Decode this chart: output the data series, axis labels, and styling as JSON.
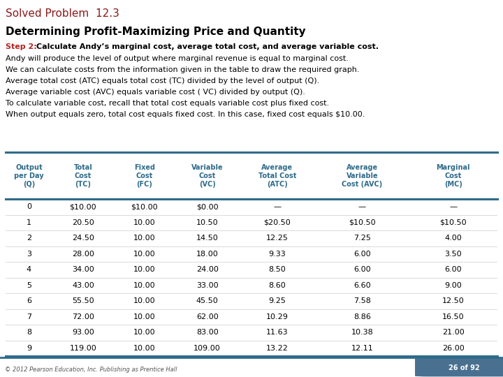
{
  "title1_normal": "Solved Problem  ",
  "title1_bold": "12.3",
  "title2": "Determining Profit-Maximizing Price and Quantity",
  "step_label": "Step 2:  ",
  "step_text": "Calculate Andy’s marginal cost, average total cost, and average variable cost.",
  "body_lines": [
    "Andy will produce the level of output where marginal revenue is equal to marginal cost.",
    "We can calculate costs from the information given in the table to draw the required graph.",
    "Average total cost (ATC) equals total cost (TC) divided by the level of output (Q).",
    "Average variable cost (AVC) equals variable cost ( VC) divided by output (Q).",
    "To calculate variable cost, recall that total cost equals variable cost plus fixed cost.",
    "When output equals zero, total cost equals fixed cost. In this case, fixed cost equals $10.00."
  ],
  "col_headers": [
    "Output\nper Day\n(Q)",
    "Total\nCost\n(TC)",
    "Fixed\nCost\n(FC)",
    "Variable\nCost\n(VC)",
    "Average\nTotal Cost\n(ATC)",
    "Average\nVariable\nCost (AVC)",
    "Marginal\nCost\n(MC)"
  ],
  "table_data": [
    [
      "0",
      "$10.00",
      "$10.00",
      "$0.00",
      "—",
      "—",
      "—"
    ],
    [
      "1",
      "20.50",
      "10.00",
      "10.50",
      "$20.50",
      "$10.50",
      "$10.50"
    ],
    [
      "2",
      "24.50",
      "10.00",
      "14.50",
      "12.25",
      "7.25",
      "4.00"
    ],
    [
      "3",
      "28.00",
      "10.00",
      "18.00",
      "9.33",
      "6.00",
      "3.50"
    ],
    [
      "4",
      "34.00",
      "10.00",
      "24.00",
      "8.50",
      "6.00",
      "6.00"
    ],
    [
      "5",
      "43.00",
      "10.00",
      "33.00",
      "8.60",
      "6.60",
      "9.00"
    ],
    [
      "6",
      "55.50",
      "10.00",
      "45.50",
      "9.25",
      "7.58",
      "12.50"
    ],
    [
      "7",
      "72.00",
      "10.00",
      "62.00",
      "10.29",
      "8.86",
      "16.50"
    ],
    [
      "8",
      "93.00",
      "10.00",
      "83.00",
      "11.63",
      "10.38",
      "21.00"
    ],
    [
      "9",
      "119.00",
      "10.00",
      "109.00",
      "13.22",
      "12.11",
      "26.00"
    ]
  ],
  "dark_red": "#8B1A1A",
  "teal": "#2E6B8A",
  "step_color": "#B22222",
  "top_bar_color": "#7B1515",
  "footer_line_color": "#2E6B8A",
  "bg_color": "#FFFFFF",
  "footer_text": "© 2012 Pearson Education, Inc. Publishing as Prentice Hall",
  "page_label": "26 of 92",
  "page_bg": "#4A7090"
}
